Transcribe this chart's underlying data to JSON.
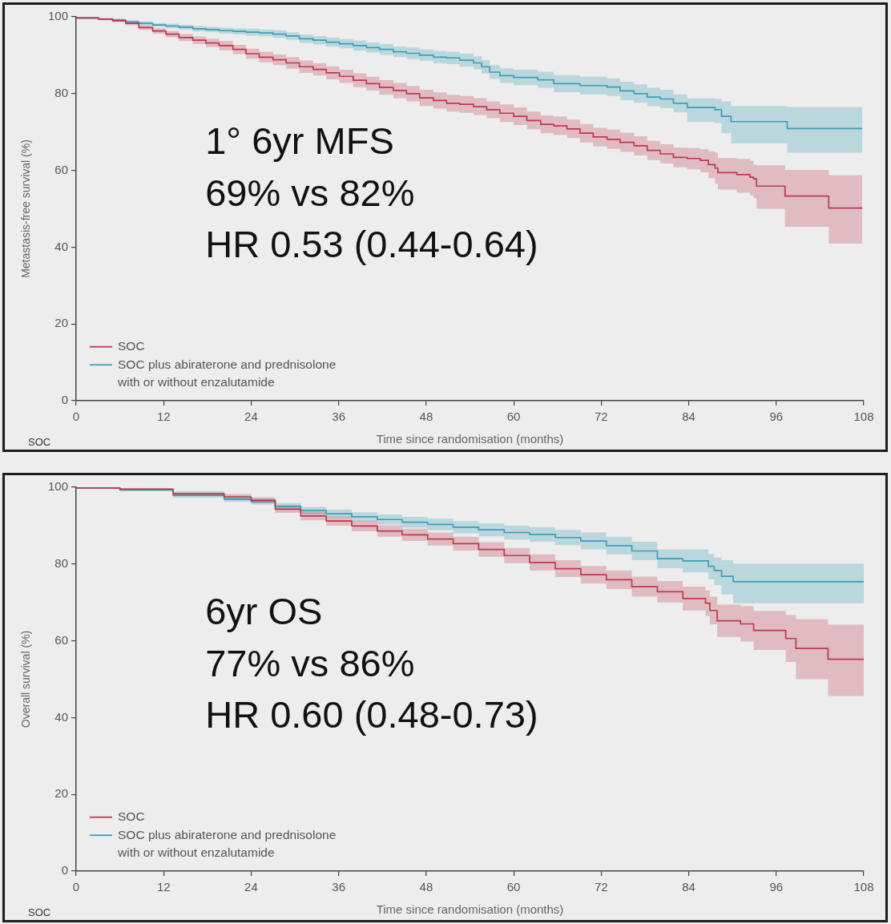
{
  "chart_data": [
    {
      "type": "step",
      "xlabel": "Time since randomisation (months)",
      "ylabel": "Metastasis-free survival (%)",
      "xlim": [
        0,
        108
      ],
      "xticks": [
        0,
        12,
        24,
        36,
        48,
        60,
        72,
        84,
        96,
        108
      ],
      "ylim": [
        0,
        100
      ],
      "yticks": [
        0,
        20,
        40,
        60,
        80,
        100
      ],
      "legend": "bottom left",
      "annotations": [
        "1° 6yr MFS",
        "69% vs 82%",
        "HR 0.53 (0.44-0.64)",
        "SOC"
      ],
      "series": [
        {
          "name": "SOC",
          "color": "#c0384e",
          "x": [
            0,
            3.1,
            5.0,
            6.8,
            8.6,
            10.5,
            12.3,
            14.1,
            16.0,
            17.8,
            19.6,
            21.5,
            23.3,
            25.1,
            27.0,
            28.8,
            30.6,
            32.5,
            34.3,
            36.1,
            38.0,
            39.8,
            41.6,
            43.5,
            45.3,
            47.1,
            49.0,
            50.8,
            52.6,
            54.5,
            56.3,
            58.1,
            60.0,
            61.8,
            63.7,
            65.5,
            67.3,
            69.1,
            70.9,
            72.8,
            74.6,
            76.5,
            78.3,
            80.1,
            81.9,
            83.8,
            85.6,
            86.7,
            87.6,
            88.0,
            90.6,
            92.4,
            92.9,
            93.3,
            97.2,
            103.2,
            105.0,
            107.8
          ],
          "values": [
            100,
            99.7,
            99.4,
            99.0,
            98.3,
            97.2,
            96.3,
            95.5,
            94.6,
            93.9,
            93.2,
            92.5,
            91.5,
            90.4,
            89.5,
            88.8,
            88.0,
            87.0,
            86.3,
            85.4,
            84.5,
            83.5,
            82.6,
            81.6,
            80.8,
            80.0,
            78.9,
            78.2,
            77.5,
            77.2,
            76.6,
            75.8,
            74.9,
            74.1,
            73.0,
            72.0,
            71.6,
            70.8,
            69.7,
            68.7,
            68.1,
            67.3,
            66.4,
            65.2,
            64.3,
            63.4,
            63.1,
            62.6,
            61.5,
            60.6,
            59.4,
            58.9,
            58.2,
            57.8,
            55.9,
            53.3,
            50.2,
            50.2
          ],
          "lower": [
            100,
            99.5,
            99.1,
            98.6,
            97.8,
            96.6,
            95.6,
            94.7,
            93.7,
            92.9,
            92.1,
            91.3,
            90.3,
            89.1,
            88.1,
            87.4,
            86.5,
            85.4,
            84.7,
            83.7,
            82.8,
            81.7,
            80.8,
            79.7,
            78.8,
            78.0,
            76.8,
            76.1,
            75.3,
            75.0,
            74.4,
            73.6,
            72.6,
            71.8,
            70.7,
            69.7,
            69.2,
            68.4,
            67.3,
            66.3,
            65.6,
            64.8,
            63.9,
            62.7,
            61.8,
            60.8,
            60.3,
            59.5,
            58.0,
            56.6,
            55.0,
            54.2,
            53.5,
            52.8,
            50.0,
            45.3,
            40.9,
            40.9
          ],
          "upper": [
            100,
            99.9,
            99.7,
            99.4,
            98.8,
            97.8,
            97.0,
            96.3,
            95.5,
            94.9,
            94.3,
            93.7,
            92.7,
            91.7,
            90.9,
            90.2,
            89.5,
            88.6,
            87.9,
            87.1,
            86.2,
            85.3,
            84.4,
            83.5,
            82.8,
            82.0,
            81.0,
            80.3,
            79.7,
            79.4,
            78.8,
            78.0,
            77.2,
            76.4,
            75.3,
            74.3,
            74.0,
            73.2,
            72.1,
            71.1,
            70.6,
            69.8,
            68.9,
            67.7,
            66.8,
            65.9,
            65.8,
            65.5,
            65.0,
            64.6,
            63.2,
            63.0,
            62.5,
            61.5,
            61.3,
            60.1,
            58.7,
            58.7
          ]
        },
        {
          "name": "SOC plus abiraterone and prednisolone with or without enzalutamide",
          "color": "#3a9fb8",
          "x": [
            0,
            3.1,
            5.0,
            6.8,
            8.6,
            10.5,
            12.3,
            14.1,
            16.0,
            17.8,
            19.6,
            21.5,
            23.3,
            25.1,
            27.0,
            28.8,
            30.6,
            32.5,
            34.3,
            36.1,
            38.0,
            39.8,
            41.6,
            43.5,
            45.3,
            47.1,
            49.0,
            50.8,
            52.6,
            54.5,
            55.6,
            56.7,
            58.1,
            60.0,
            63.3,
            65.5,
            69.1,
            72.8,
            74.6,
            76.5,
            78.3,
            80.1,
            81.9,
            83.8,
            87.6,
            88.5,
            89.8,
            97.5,
            98.3,
            107.8
          ],
          "values": [
            100,
            99.7,
            99.4,
            99.2,
            98.7,
            98.3,
            97.9,
            97.6,
            97.3,
            96.9,
            96.7,
            96.4,
            96.2,
            96.0,
            95.8,
            95.5,
            95.0,
            94.3,
            93.9,
            93.4,
            93.0,
            92.5,
            92.0,
            91.5,
            90.9,
            90.5,
            90.0,
            89.5,
            89.3,
            88.7,
            88.0,
            87.0,
            85.6,
            84.7,
            84.2,
            83.6,
            82.6,
            82.1,
            81.7,
            80.7,
            80.0,
            79.1,
            78.6,
            77.5,
            76.4,
            75.8,
            74.1,
            72.7,
            70.9,
            70.9
          ],
          "lower": [
            100,
            99.5,
            99.2,
            98.9,
            98.3,
            97.8,
            97.4,
            97.0,
            96.7,
            96.2,
            96.0,
            95.6,
            95.4,
            95.1,
            94.9,
            94.5,
            94.0,
            93.2,
            92.8,
            92.2,
            91.8,
            91.2,
            90.7,
            90.1,
            89.5,
            89.0,
            88.5,
            87.9,
            87.7,
            87.0,
            86.3,
            85.2,
            83.8,
            82.8,
            82.2,
            81.5,
            80.4,
            79.8,
            79.4,
            78.3,
            77.6,
            76.7,
            76.2,
            75.1,
            72.6,
            72.3,
            69.7,
            67.0,
            64.6,
            64.6
          ],
          "upper": [
            100,
            99.9,
            99.6,
            99.5,
            99.1,
            98.8,
            98.4,
            98.2,
            97.9,
            97.6,
            97.4,
            97.2,
            97.0,
            96.9,
            96.7,
            96.5,
            96.0,
            95.4,
            95.0,
            94.6,
            94.2,
            93.8,
            93.3,
            92.9,
            92.3,
            92.0,
            91.5,
            91.1,
            90.9,
            90.4,
            89.7,
            88.8,
            87.4,
            86.6,
            86.2,
            85.7,
            84.8,
            84.4,
            84.0,
            83.1,
            82.4,
            81.5,
            81.0,
            79.8,
            78.8,
            78.6,
            78.0,
            76.8,
            76.5,
            76.5
          ]
        }
      ]
    },
    {
      "type": "step",
      "xlabel": "Time since randomisation (months)",
      "ylabel": "Overall survival (%)",
      "xlim": [
        0,
        108
      ],
      "xticks": [
        0,
        12,
        24,
        36,
        48,
        60,
        72,
        84,
        96,
        108
      ],
      "ylim": [
        0,
        100
      ],
      "yticks": [
        0,
        20,
        40,
        60,
        80,
        100
      ],
      "legend": "bottom left",
      "annotations": [
        "6yr OS",
        "77% vs 86%",
        "HR 0.60 (0.48-0.73)",
        "SOC"
      ],
      "series": [
        {
          "name": "SOC",
          "color": "#c0384e",
          "x": [
            0,
            6.0,
            13.3,
            20.3,
            24.0,
            27.3,
            30.8,
            34.3,
            37.8,
            41.3,
            44.7,
            48.2,
            51.7,
            55.2,
            58.7,
            62.2,
            65.7,
            69.2,
            72.7,
            76.2,
            79.7,
            83.2,
            86.3,
            86.9,
            87.9,
            91.1,
            92.9,
            97.3,
            98.7,
            103.1,
            104.9,
            108
          ],
          "values": [
            100,
            99.8,
            99.5,
            98.3,
            97.5,
            96.6,
            94.3,
            92.5,
            91.2,
            89.9,
            88.6,
            87.6,
            86.5,
            85.3,
            83.8,
            82.2,
            80.4,
            78.8,
            77.2,
            75.9,
            74.1,
            72.8,
            71.0,
            69.8,
            67.9,
            65.2,
            64.4,
            62.7,
            60.6,
            58.0,
            55.2,
            55.2
          ],
          "lower": [
            100,
            99.7,
            99.2,
            97.7,
            96.8,
            95.8,
            93.3,
            91.4,
            90.0,
            88.5,
            87.1,
            86.0,
            84.8,
            83.5,
            81.9,
            80.2,
            78.3,
            76.6,
            74.9,
            73.5,
            71.5,
            70.0,
            67.9,
            66.5,
            64.3,
            61.0,
            59.8,
            57.6,
            54.5,
            50.0,
            45.6,
            45.6
          ],
          "upper": [
            100,
            99.9,
            99.8,
            98.9,
            98.2,
            97.4,
            95.3,
            93.6,
            92.4,
            91.3,
            90.1,
            89.2,
            88.2,
            87.1,
            85.7,
            84.2,
            82.5,
            81.0,
            79.5,
            78.3,
            76.7,
            75.6,
            74.1,
            73.1,
            71.5,
            69.4,
            69.0,
            67.8,
            66.7,
            65.6,
            64.2,
            64.2
          ]
        },
        {
          "name": "SOC plus abiraterone and prednisolone with or without enzalutamide",
          "color": "#3a9fb8",
          "x": [
            0,
            6.0,
            13.3,
            20.3,
            24.0,
            27.3,
            30.8,
            34.3,
            37.8,
            41.3,
            44.7,
            48.2,
            51.7,
            55.2,
            58.7,
            62.2,
            65.7,
            69.2,
            72.7,
            76.2,
            79.7,
            83.2,
            86.7,
            87.5,
            88.5,
            90.1,
            97.5,
            108
          ],
          "values": [
            100,
            99.8,
            99.3,
            97.9,
            96.9,
            96.3,
            95.0,
            93.9,
            93.1,
            92.3,
            91.6,
            90.9,
            90.3,
            89.6,
            88.9,
            88.2,
            87.7,
            86.9,
            86.0,
            84.8,
            83.4,
            81.4,
            80.8,
            79.4,
            78.3,
            76.8,
            75.4,
            75.4
          ],
          "lower": [
            100,
            99.7,
            99.0,
            97.3,
            96.2,
            95.5,
            94.1,
            92.9,
            92.0,
            91.1,
            90.3,
            89.5,
            88.8,
            88.0,
            87.2,
            86.4,
            85.8,
            84.9,
            83.8,
            82.5,
            81.0,
            78.9,
            77.8,
            76.0,
            74.5,
            72.1,
            69.8,
            69.8
          ],
          "upper": [
            100,
            99.9,
            99.6,
            98.5,
            97.6,
            97.1,
            95.9,
            94.9,
            94.2,
            93.5,
            92.9,
            92.3,
            91.8,
            91.2,
            90.6,
            90.0,
            89.6,
            88.9,
            88.2,
            87.1,
            85.8,
            83.8,
            83.8,
            82.6,
            81.7,
            81.0,
            80.1,
            80.1
          ]
        }
      ]
    }
  ]
}
